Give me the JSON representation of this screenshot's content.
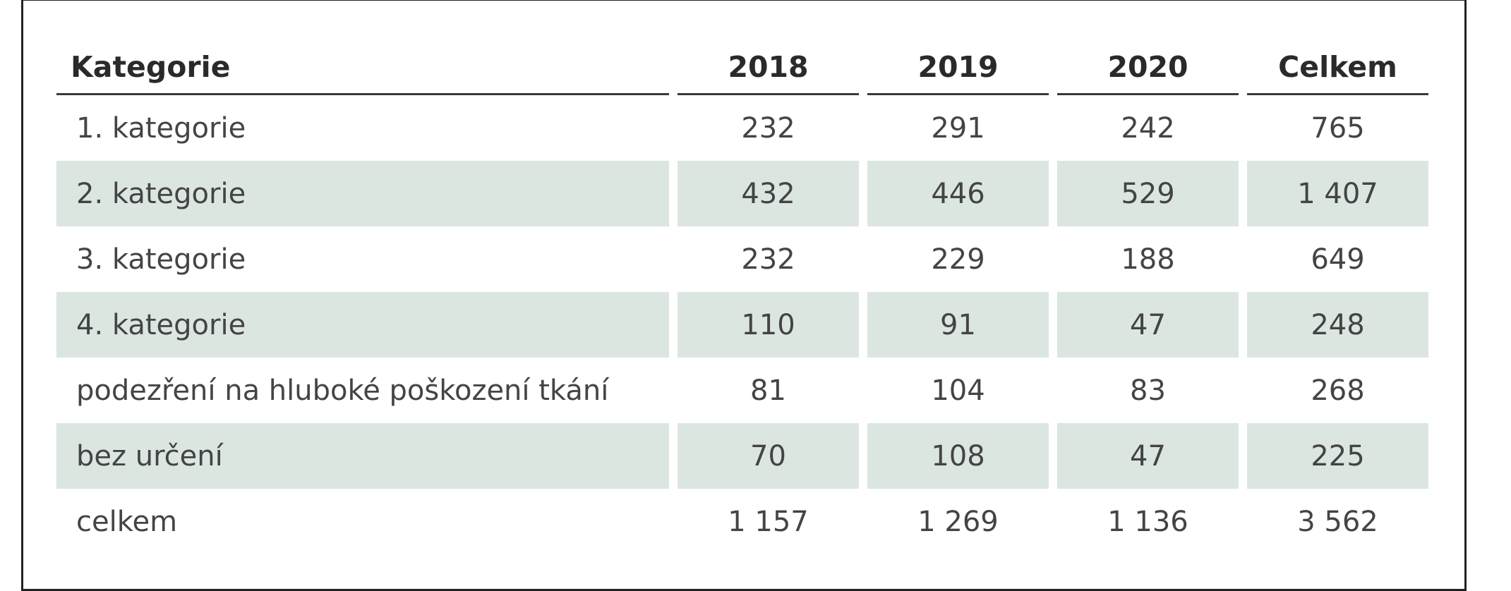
{
  "table": {
    "headers": [
      "Kategorie",
      "2018",
      "2019",
      "2020",
      "Celkem"
    ],
    "rows": [
      {
        "label": "1. kategorie",
        "values": [
          "232",
          "291",
          "242",
          "765"
        ],
        "shaded": false
      },
      {
        "label": "2. kategorie",
        "values": [
          "432",
          "446",
          "529",
          "1 407"
        ],
        "shaded": true
      },
      {
        "label": "3. kategorie",
        "values": [
          "232",
          "229",
          "188",
          "649"
        ],
        "shaded": false
      },
      {
        "label": "4. kategorie",
        "values": [
          "110",
          "91",
          "47",
          "248"
        ],
        "shaded": true
      },
      {
        "label": "podezření na hluboké poškození tkání",
        "values": [
          "81",
          "104",
          "83",
          "268"
        ],
        "shaded": false
      },
      {
        "label": "bez určení",
        "values": [
          "70",
          "108",
          "47",
          "225"
        ],
        "shaded": true
      },
      {
        "label": "celkem",
        "values": [
          "1 157",
          "1 269",
          "1 136",
          "3 562"
        ],
        "shaded": false
      }
    ]
  },
  "colors": {
    "shaded_row": "#dce6e1",
    "border": "#222222",
    "text": "#444444"
  }
}
